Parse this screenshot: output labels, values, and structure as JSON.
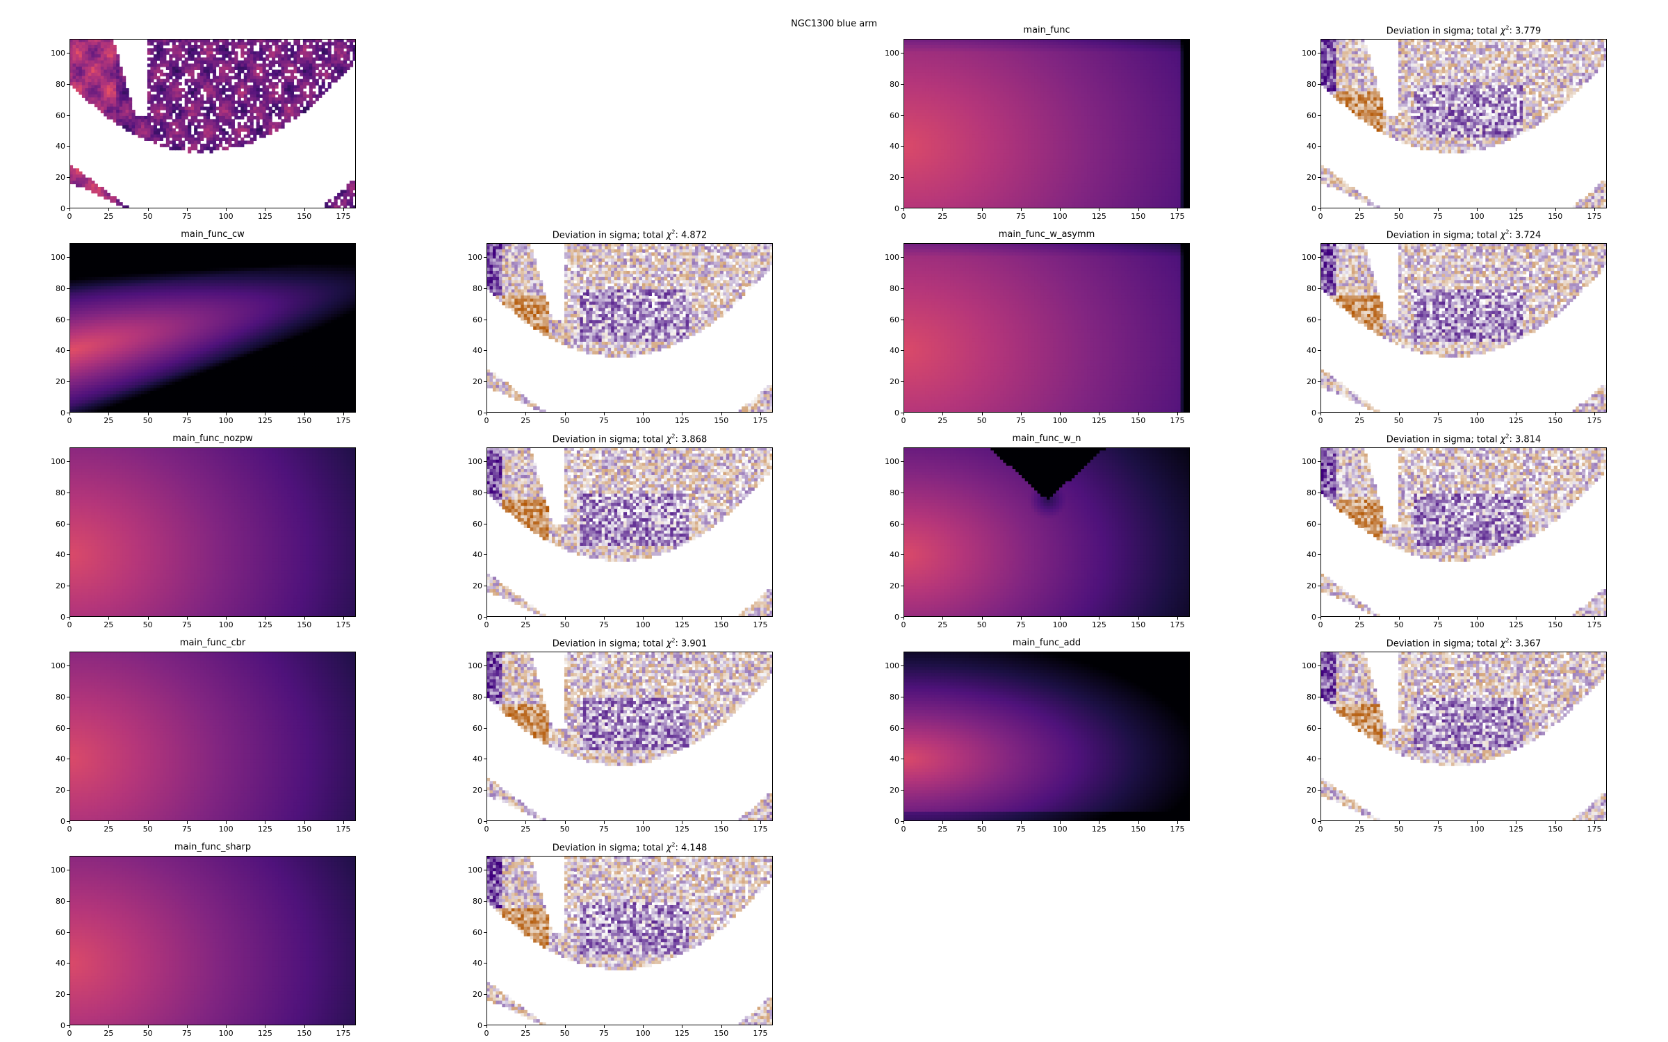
{
  "figure": {
    "title": "NGC1300 blue arm"
  },
  "colors": {
    "magma_low": "#000004",
    "magma_mid": "#51127c",
    "magma_high": "#d3436e",
    "dev_negative": "#3f007d",
    "dev_positive": "#b35806",
    "background": "#ffffff"
  },
  "chart_data": [
    {
      "id": "data",
      "type": "heatmap",
      "title": "",
      "colormap": "magma",
      "kind": "masked_image",
      "xlim": [
        0,
        183
      ],
      "ylim": [
        0,
        109
      ],
      "xticks": [
        0,
        25,
        50,
        75,
        100,
        125,
        150,
        175
      ],
      "yticks": [
        0,
        20,
        40,
        60,
        80,
        100
      ]
    },
    {
      "id": "main_func",
      "type": "heatmap",
      "title": "main_func",
      "colormap": "magma",
      "kind": "model",
      "xlim": [
        0,
        183
      ],
      "ylim": [
        0,
        109
      ],
      "xticks": [
        0,
        25,
        50,
        75,
        100,
        125,
        150,
        175
      ],
      "yticks": [
        0,
        20,
        40,
        60,
        80,
        100
      ]
    },
    {
      "id": "dev_main_func",
      "type": "heatmap",
      "title_prefix": "Deviation in sigma; total ",
      "chi2": "3.779",
      "colormap": "PuOr",
      "kind": "deviation",
      "xlim": [
        0,
        183
      ],
      "ylim": [
        0,
        109
      ],
      "xticks": [
        0,
        25,
        50,
        75,
        100,
        125,
        150,
        175
      ],
      "yticks": [
        0,
        20,
        40,
        60,
        80,
        100
      ]
    },
    {
      "id": "main_func_cw",
      "type": "heatmap",
      "title": "main_func_cw",
      "colormap": "magma",
      "kind": "model",
      "xlim": [
        0,
        183
      ],
      "ylim": [
        0,
        109
      ],
      "xticks": [
        0,
        25,
        50,
        75,
        100,
        125,
        150,
        175
      ],
      "yticks": [
        0,
        20,
        40,
        60,
        80,
        100
      ]
    },
    {
      "id": "dev_main_func_cw",
      "type": "heatmap",
      "title_prefix": "Deviation in sigma; total ",
      "chi2": "4.872",
      "colormap": "PuOr",
      "kind": "deviation",
      "xlim": [
        0,
        183
      ],
      "ylim": [
        0,
        109
      ],
      "xticks": [
        0,
        25,
        50,
        75,
        100,
        125,
        150,
        175
      ],
      "yticks": [
        0,
        20,
        40,
        60,
        80,
        100
      ]
    },
    {
      "id": "main_func_w_asymm",
      "type": "heatmap",
      "title": "main_func_w_asymm",
      "colormap": "magma",
      "kind": "model",
      "xlim": [
        0,
        183
      ],
      "ylim": [
        0,
        109
      ],
      "xticks": [
        0,
        25,
        50,
        75,
        100,
        125,
        150,
        175
      ],
      "yticks": [
        0,
        20,
        40,
        60,
        80,
        100
      ]
    },
    {
      "id": "dev_main_func_w_asymm",
      "type": "heatmap",
      "title_prefix": "Deviation in sigma; total ",
      "chi2": "3.724",
      "colormap": "PuOr",
      "kind": "deviation",
      "xlim": [
        0,
        183
      ],
      "ylim": [
        0,
        109
      ],
      "xticks": [
        0,
        25,
        50,
        75,
        100,
        125,
        150,
        175
      ],
      "yticks": [
        0,
        20,
        40,
        60,
        80,
        100
      ]
    },
    {
      "id": "main_func_nozpw",
      "type": "heatmap",
      "title": "main_func_nozpw",
      "colormap": "magma",
      "kind": "model",
      "xlim": [
        0,
        183
      ],
      "ylim": [
        0,
        109
      ],
      "xticks": [
        0,
        25,
        50,
        75,
        100,
        125,
        150,
        175
      ],
      "yticks": [
        0,
        20,
        40,
        60,
        80,
        100
      ]
    },
    {
      "id": "dev_main_func_nozpw",
      "type": "heatmap",
      "title_prefix": "Deviation in sigma; total ",
      "chi2": "3.868",
      "colormap": "PuOr",
      "kind": "deviation",
      "xlim": [
        0,
        183
      ],
      "ylim": [
        0,
        109
      ],
      "xticks": [
        0,
        25,
        50,
        75,
        100,
        125,
        150,
        175
      ],
      "yticks": [
        0,
        20,
        40,
        60,
        80,
        100
      ]
    },
    {
      "id": "main_func_w_n",
      "type": "heatmap",
      "title": "main_func_w_n",
      "colormap": "magma",
      "kind": "model",
      "xlim": [
        0,
        183
      ],
      "ylim": [
        0,
        109
      ],
      "xticks": [
        0,
        25,
        50,
        75,
        100,
        125,
        150,
        175
      ],
      "yticks": [
        0,
        20,
        40,
        60,
        80,
        100
      ]
    },
    {
      "id": "dev_main_func_w_n",
      "type": "heatmap",
      "title_prefix": "Deviation in sigma; total ",
      "chi2": "3.814",
      "colormap": "PuOr",
      "kind": "deviation",
      "xlim": [
        0,
        183
      ],
      "ylim": [
        0,
        109
      ],
      "xticks": [
        0,
        25,
        50,
        75,
        100,
        125,
        150,
        175
      ],
      "yticks": [
        0,
        20,
        40,
        60,
        80,
        100
      ]
    },
    {
      "id": "main_func_cbr",
      "type": "heatmap",
      "title": "main_func_cbr",
      "colormap": "magma",
      "kind": "model",
      "xlim": [
        0,
        183
      ],
      "ylim": [
        0,
        109
      ],
      "xticks": [
        0,
        25,
        50,
        75,
        100,
        125,
        150,
        175
      ],
      "yticks": [
        0,
        20,
        40,
        60,
        80,
        100
      ]
    },
    {
      "id": "dev_main_func_cbr",
      "type": "heatmap",
      "title_prefix": "Deviation in sigma; total ",
      "chi2": "3.901",
      "colormap": "PuOr",
      "kind": "deviation",
      "xlim": [
        0,
        183
      ],
      "ylim": [
        0,
        109
      ],
      "xticks": [
        0,
        25,
        50,
        75,
        100,
        125,
        150,
        175
      ],
      "yticks": [
        0,
        20,
        40,
        60,
        80,
        100
      ]
    },
    {
      "id": "main_func_add",
      "type": "heatmap",
      "title": "main_func_add",
      "colormap": "magma",
      "kind": "model",
      "xlim": [
        0,
        183
      ],
      "ylim": [
        0,
        109
      ],
      "xticks": [
        0,
        25,
        50,
        75,
        100,
        125,
        150,
        175
      ],
      "yticks": [
        0,
        20,
        40,
        60,
        80,
        100
      ]
    },
    {
      "id": "dev_main_func_add",
      "type": "heatmap",
      "title_prefix": "Deviation in sigma; total ",
      "chi2": "3.367",
      "colormap": "PuOr",
      "kind": "deviation",
      "xlim": [
        0,
        183
      ],
      "ylim": [
        0,
        109
      ],
      "xticks": [
        0,
        25,
        50,
        75,
        100,
        125,
        150,
        175
      ],
      "yticks": [
        0,
        20,
        40,
        60,
        80,
        100
      ]
    },
    {
      "id": "main_func_sharp",
      "type": "heatmap",
      "title": "main_func_sharp",
      "colormap": "magma",
      "kind": "model",
      "xlim": [
        0,
        183
      ],
      "ylim": [
        0,
        109
      ],
      "xticks": [
        0,
        25,
        50,
        75,
        100,
        125,
        150,
        175
      ],
      "yticks": [
        0,
        20,
        40,
        60,
        80,
        100
      ]
    },
    {
      "id": "dev_main_func_sharp",
      "type": "heatmap",
      "title_prefix": "Deviation in sigma; total ",
      "chi2": "4.148",
      "colormap": "PuOr",
      "kind": "deviation",
      "xlim": [
        0,
        183
      ],
      "ylim": [
        0,
        109
      ],
      "xticks": [
        0,
        25,
        50,
        75,
        100,
        125,
        150,
        175
      ],
      "yticks": [
        0,
        20,
        40,
        60,
        80,
        100
      ]
    }
  ]
}
